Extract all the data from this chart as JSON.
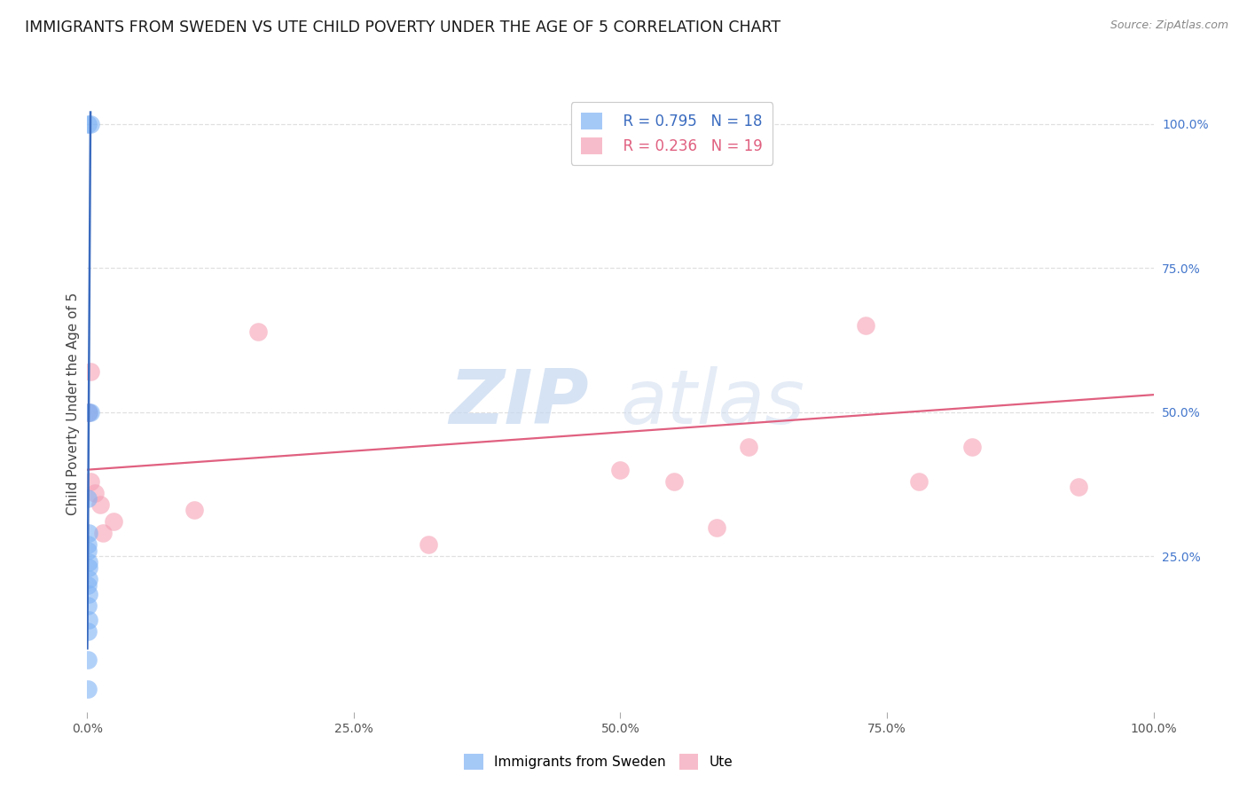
{
  "title": "IMMIGRANTS FROM SWEDEN VS UTE CHILD POVERTY UNDER THE AGE OF 5 CORRELATION CHART",
  "source": "Source: ZipAtlas.com",
  "ylabel": "Child Poverty Under the Age of 5",
  "blue_label": "Immigrants from Sweden",
  "pink_label": "Ute",
  "blue_R": 0.795,
  "blue_N": 18,
  "pink_R": 0.236,
  "pink_N": 19,
  "blue_scatter_x": [
    0.0005,
    0.003,
    0.003,
    0.001,
    0.0008,
    0.001,
    0.0006,
    0.0005,
    0.0012,
    0.0015,
    0.001,
    0.0008,
    0.001,
    0.0007,
    0.0009,
    0.0006,
    0.0005,
    0.0004
  ],
  "blue_scatter_y": [
    1.0,
    1.0,
    0.5,
    0.5,
    0.35,
    0.29,
    0.27,
    0.26,
    0.24,
    0.23,
    0.21,
    0.2,
    0.185,
    0.165,
    0.14,
    0.12,
    0.07,
    0.02
  ],
  "pink_scatter_x": [
    0.0006,
    0.0015,
    0.003,
    0.003,
    0.007,
    0.012,
    0.015,
    0.025,
    0.1,
    0.16,
    0.55,
    0.62,
    0.73,
    0.78,
    0.83,
    0.93,
    0.5,
    0.32,
    0.59
  ],
  "pink_scatter_y": [
    0.5,
    0.5,
    0.57,
    0.38,
    0.36,
    0.34,
    0.29,
    0.31,
    0.33,
    0.64,
    0.38,
    0.44,
    0.65,
    0.38,
    0.44,
    0.37,
    0.4,
    0.27,
    0.3
  ],
  "blue_line_x": [
    0.0,
    0.003
  ],
  "blue_line_y": [
    0.09,
    1.02
  ],
  "pink_line_x": [
    0.0,
    1.0
  ],
  "pink_line_y": [
    0.4,
    0.53
  ],
  "xlim": [
    0.0,
    1.0
  ],
  "ylim": [
    -0.02,
    1.05
  ],
  "xticks": [
    0.0,
    0.25,
    0.5,
    0.75,
    1.0
  ],
  "xticklabels": [
    "0.0%",
    "25.0%",
    "50.0%",
    "75.0%",
    "100.0%"
  ],
  "ytick_right": [
    0.25,
    0.5,
    0.75,
    1.0
  ],
  "ytick_right_labels": [
    "25.0%",
    "50.0%",
    "75.0%",
    "100.0%"
  ],
  "blue_color": "#7fb3f5",
  "pink_color": "#f5a0b5",
  "blue_line_color": "#3a6bbf",
  "pink_line_color": "#e06080",
  "background_color": "#ffffff",
  "grid_color": "#e0e0e0",
  "watermark_zip": "ZIP",
  "watermark_atlas": "atlas",
  "title_fontsize": 12.5,
  "label_fontsize": 11,
  "tick_fontsize": 10
}
